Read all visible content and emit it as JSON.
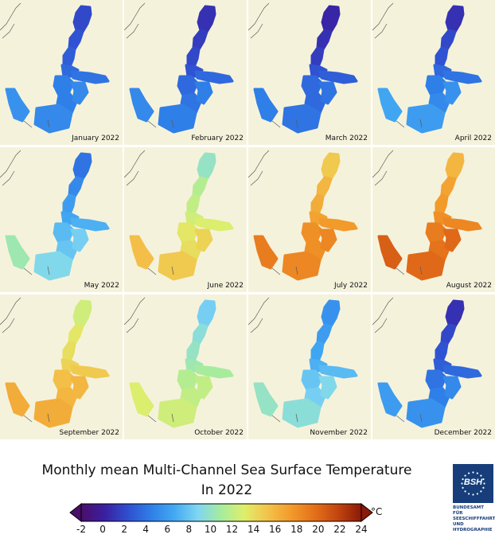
{
  "panels": [
    {
      "label": "January 2022",
      "temps": [
        2.0,
        2.5,
        3.0,
        3.5,
        4.0,
        4.5,
        4.5,
        5.0,
        5.0,
        5.5
      ]
    },
    {
      "label": "February 2022",
      "temps": [
        1.0,
        1.5,
        2.0,
        2.5,
        3.5,
        3.5,
        4.0,
        4.5,
        4.5,
        5.0
      ]
    },
    {
      "label": "March 2022",
      "temps": [
        0.5,
        1.0,
        1.5,
        2.5,
        3.0,
        3.5,
        3.5,
        4.0,
        4.0,
        4.5
      ]
    },
    {
      "label": "April 2022",
      "temps": [
        1.0,
        2.0,
        2.5,
        3.5,
        4.0,
        4.5,
        5.0,
        5.5,
        6.0,
        6.5
      ]
    },
    {
      "label": "May 2022",
      "temps": [
        4.0,
        5.0,
        6.0,
        6.5,
        7.0,
        7.5,
        8.0,
        8.5,
        9.0,
        10.5
      ]
    },
    {
      "label": "June 2022",
      "temps": [
        10.0,
        11.5,
        12.0,
        12.5,
        13.0,
        13.5,
        14.0,
        14.5,
        15.0,
        15.5
      ]
    },
    {
      "label": "July 2022",
      "temps": [
        15.0,
        16.0,
        16.5,
        17.0,
        17.5,
        18.0,
        18.0,
        18.5,
        18.5,
        19.0
      ]
    },
    {
      "label": "August 2022",
      "temps": [
        16.0,
        17.0,
        17.5,
        18.0,
        18.5,
        19.0,
        19.5,
        20.0,
        20.0,
        20.5
      ]
    },
    {
      "label": "September 2022",
      "temps": [
        12.5,
        13.5,
        14.0,
        14.5,
        15.0,
        15.5,
        16.0,
        16.0,
        16.5,
        16.5
      ]
    },
    {
      "label": "October 2022",
      "temps": [
        8.5,
        9.5,
        10.0,
        10.5,
        11.0,
        11.5,
        12.0,
        12.0,
        12.5,
        13.0
      ]
    },
    {
      "label": "November 2022",
      "temps": [
        5.5,
        6.0,
        6.5,
        7.0,
        7.5,
        8.0,
        8.5,
        9.0,
        9.5,
        10.0
      ]
    },
    {
      "label": "December 2022",
      "temps": [
        1.0,
        2.0,
        2.5,
        3.0,
        3.5,
        4.0,
        4.5,
        5.0,
        5.5,
        6.0
      ]
    }
  ],
  "title_line1": "Monthly mean Multi-Channel Sea Surface Temperature",
  "title_line2": "In 2022",
  "colorbar": {
    "unit": "°C",
    "min": -2,
    "max": 24,
    "ticks": [
      "-2",
      "0",
      "2",
      "4",
      "6",
      "8",
      "10",
      "12",
      "14",
      "16",
      "18",
      "20",
      "22",
      "24"
    ],
    "stops": [
      "#4a0e6b",
      "#3a1fa0",
      "#2f4fd0",
      "#2f7fe8",
      "#43a9f2",
      "#7fd6f2",
      "#a7ec9d",
      "#e0ee6a",
      "#f3c24a",
      "#f29a2a",
      "#e4701a",
      "#c2450f",
      "#8a1a07"
    ]
  },
  "logo": {
    "mark": "BSH",
    "lines": [
      "BUNDESAMT FÜR",
      "SEESCHIFFFAHRT",
      "UND",
      "HYDROGRAPHIE"
    ],
    "color": "#173e7a"
  },
  "colors": {
    "land": "#f5f2dc",
    "coast": "#5a5a5a"
  }
}
